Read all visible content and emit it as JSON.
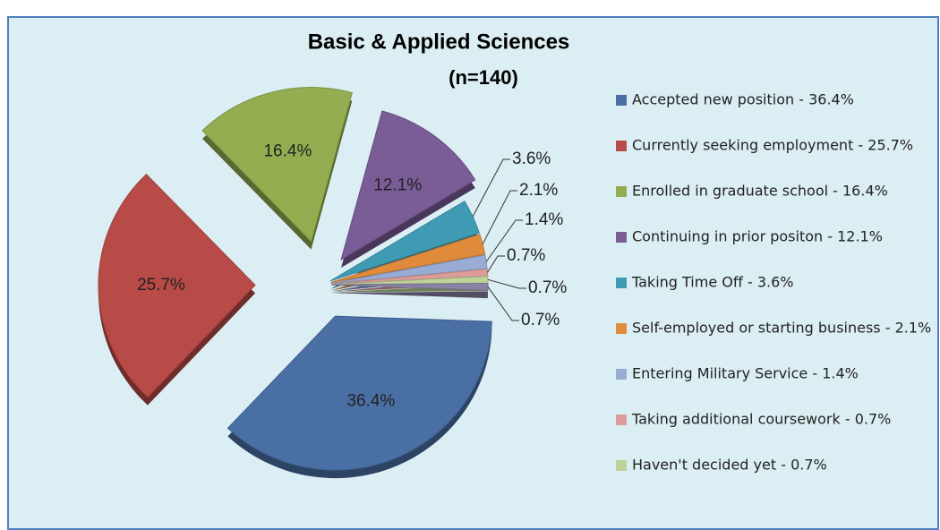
{
  "chart_data": {
    "type": "pie",
    "title": "Basic & Applied Sciences",
    "subtitle": "(n=140)",
    "categories": [
      "Accepted new position - 36.4%",
      "Currently seeking employment - 25.7%",
      "Enrolled in graduate school - 16.4%",
      "Continuing in prior positon - 12.1%",
      "Taking Time Off - 3.6%",
      "Self-employed or starting business - 2.1%",
      "Entering Military Service - 1.4%",
      "Taking additional coursework - 0.7%",
      "Haven't decided yet - 0.7%",
      null
    ],
    "values": [
      36.4,
      25.7,
      16.4,
      12.1,
      3.6,
      2.1,
      1.4,
      0.7,
      0.7,
      0.7
    ],
    "value_labels": [
      "36.4%",
      "25.7%",
      "16.4%",
      "12.1%",
      "3.6%",
      "2.1%",
      "1.4%",
      "0.7%",
      "0.7%",
      "0.7%"
    ],
    "colors": [
      "#4a6fa5",
      "#b84a47",
      "#93ad50",
      "#7a5c96",
      "#3f9bb3",
      "#e08a3c",
      "#98acd4",
      "#dd9c9a",
      "#bdd397",
      "#8c82a8"
    ],
    "legend": "right"
  }
}
